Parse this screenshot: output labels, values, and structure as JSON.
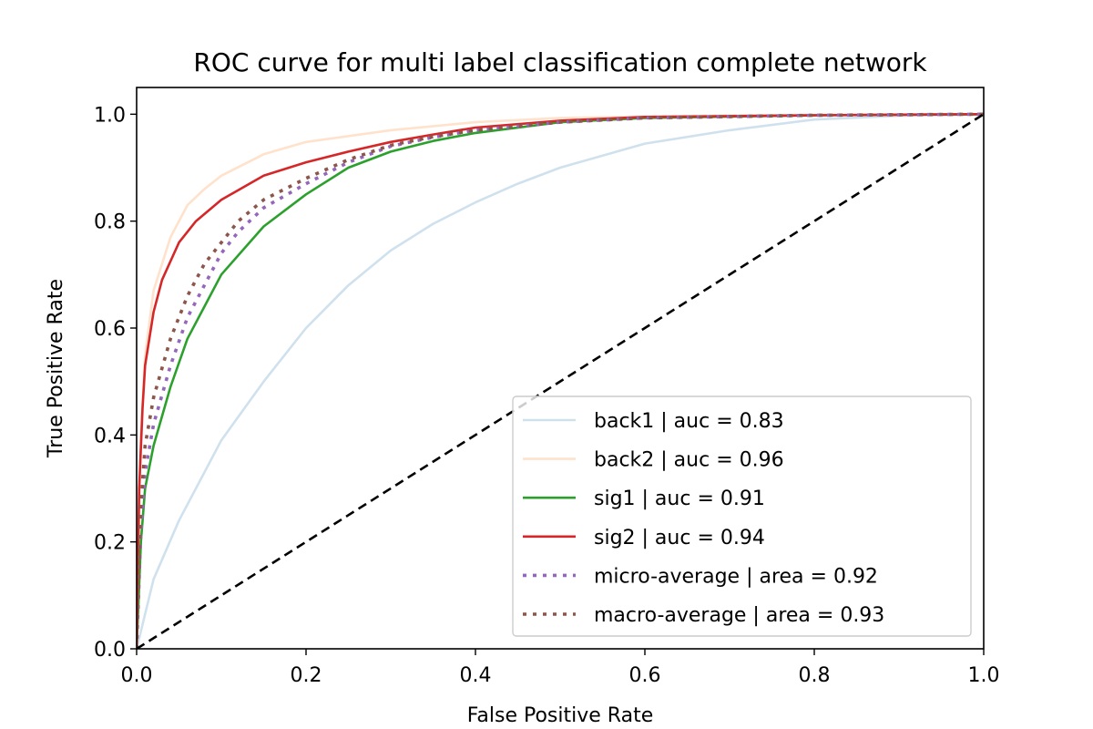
{
  "chart_data": {
    "type": "line",
    "title": "ROC curve for multi label classification complete network",
    "xlabel": "False Positive Rate",
    "ylabel": "True Positive Rate",
    "xlim": [
      0.0,
      1.0
    ],
    "ylim": [
      0.0,
      1.05
    ],
    "xticks": [
      "0.0",
      "0.2",
      "0.4",
      "0.6",
      "0.8",
      "1.0"
    ],
    "yticks": [
      "0.0",
      "0.2",
      "0.4",
      "0.6",
      "0.8",
      "1.0"
    ],
    "grid": false,
    "legend_position": "lower-right",
    "series": [
      {
        "name": "back1 | auc = 0.83",
        "color": "#d0e1ee",
        "style": "solid",
        "points": [
          [
            0,
            0
          ],
          [
            0.02,
            0.13
          ],
          [
            0.05,
            0.24
          ],
          [
            0.1,
            0.39
          ],
          [
            0.15,
            0.5
          ],
          [
            0.2,
            0.6
          ],
          [
            0.25,
            0.68
          ],
          [
            0.3,
            0.745
          ],
          [
            0.35,
            0.795
          ],
          [
            0.4,
            0.835
          ],
          [
            0.45,
            0.87
          ],
          [
            0.5,
            0.9
          ],
          [
            0.6,
            0.945
          ],
          [
            0.7,
            0.97
          ],
          [
            0.8,
            0.99
          ],
          [
            0.9,
            0.997
          ],
          [
            1,
            1
          ]
        ]
      },
      {
        "name": "back2 | auc = 0.96",
        "color": "#ffe2cc",
        "style": "solid",
        "points": [
          [
            0,
            0
          ],
          [
            0.005,
            0.4
          ],
          [
            0.01,
            0.55
          ],
          [
            0.02,
            0.67
          ],
          [
            0.04,
            0.77
          ],
          [
            0.06,
            0.83
          ],
          [
            0.08,
            0.86
          ],
          [
            0.1,
            0.885
          ],
          [
            0.15,
            0.925
          ],
          [
            0.2,
            0.948
          ],
          [
            0.3,
            0.97
          ],
          [
            0.4,
            0.985
          ],
          [
            0.5,
            0.993
          ],
          [
            0.7,
            0.998
          ],
          [
            1,
            1
          ]
        ]
      },
      {
        "name": "sig1 | auc = 0.91",
        "color": "#2ca02c",
        "style": "solid",
        "points": [
          [
            0,
            0
          ],
          [
            0.005,
            0.2
          ],
          [
            0.01,
            0.3
          ],
          [
            0.02,
            0.38
          ],
          [
            0.04,
            0.49
          ],
          [
            0.06,
            0.58
          ],
          [
            0.08,
            0.64
          ],
          [
            0.1,
            0.7
          ],
          [
            0.15,
            0.79
          ],
          [
            0.2,
            0.85
          ],
          [
            0.25,
            0.9
          ],
          [
            0.3,
            0.93
          ],
          [
            0.35,
            0.95
          ],
          [
            0.4,
            0.965
          ],
          [
            0.5,
            0.985
          ],
          [
            0.6,
            0.993
          ],
          [
            0.8,
            0.998
          ],
          [
            1,
            1
          ]
        ]
      },
      {
        "name": "sig2 | auc = 0.94",
        "color": "#d62728",
        "style": "solid",
        "points": [
          [
            0,
            0
          ],
          [
            0.003,
            0.3
          ],
          [
            0.007,
            0.45
          ],
          [
            0.01,
            0.53
          ],
          [
            0.02,
            0.63
          ],
          [
            0.03,
            0.69
          ],
          [
            0.05,
            0.76
          ],
          [
            0.07,
            0.8
          ],
          [
            0.1,
            0.84
          ],
          [
            0.15,
            0.885
          ],
          [
            0.2,
            0.91
          ],
          [
            0.25,
            0.93
          ],
          [
            0.3,
            0.948
          ],
          [
            0.35,
            0.962
          ],
          [
            0.4,
            0.975
          ],
          [
            0.5,
            0.988
          ],
          [
            0.6,
            0.995
          ],
          [
            0.8,
            0.998
          ],
          [
            1,
            1
          ]
        ]
      },
      {
        "name": "micro-average | area = 0.92",
        "color": "#9467bd",
        "style": "dotted",
        "points": [
          [
            0,
            0
          ],
          [
            0.005,
            0.22
          ],
          [
            0.01,
            0.33
          ],
          [
            0.02,
            0.42
          ],
          [
            0.04,
            0.53
          ],
          [
            0.06,
            0.62
          ],
          [
            0.08,
            0.68
          ],
          [
            0.1,
            0.74
          ],
          [
            0.12,
            0.78
          ],
          [
            0.15,
            0.825
          ],
          [
            0.2,
            0.87
          ],
          [
            0.25,
            0.91
          ],
          [
            0.3,
            0.94
          ],
          [
            0.35,
            0.957
          ],
          [
            0.4,
            0.97
          ],
          [
            0.5,
            0.985
          ],
          [
            0.6,
            0.993
          ],
          [
            0.8,
            0.998
          ],
          [
            1,
            1
          ]
        ]
      },
      {
        "name": "macro-average | area = 0.93",
        "color": "#8c564b",
        "style": "dotted",
        "points": [
          [
            0,
            0
          ],
          [
            0.005,
            0.27
          ],
          [
            0.01,
            0.38
          ],
          [
            0.02,
            0.47
          ],
          [
            0.04,
            0.58
          ],
          [
            0.06,
            0.66
          ],
          [
            0.08,
            0.72
          ],
          [
            0.1,
            0.76
          ],
          [
            0.12,
            0.8
          ],
          [
            0.15,
            0.84
          ],
          [
            0.2,
            0.88
          ],
          [
            0.25,
            0.915
          ],
          [
            0.3,
            0.942
          ],
          [
            0.35,
            0.958
          ],
          [
            0.4,
            0.97
          ],
          [
            0.5,
            0.985
          ],
          [
            0.6,
            0.993
          ],
          [
            0.8,
            0.998
          ],
          [
            1,
            1
          ]
        ]
      }
    ],
    "reference_line": {
      "color": "#000000",
      "style": "dashed",
      "points": [
        [
          0,
          0
        ],
        [
          1,
          1
        ]
      ]
    }
  }
}
